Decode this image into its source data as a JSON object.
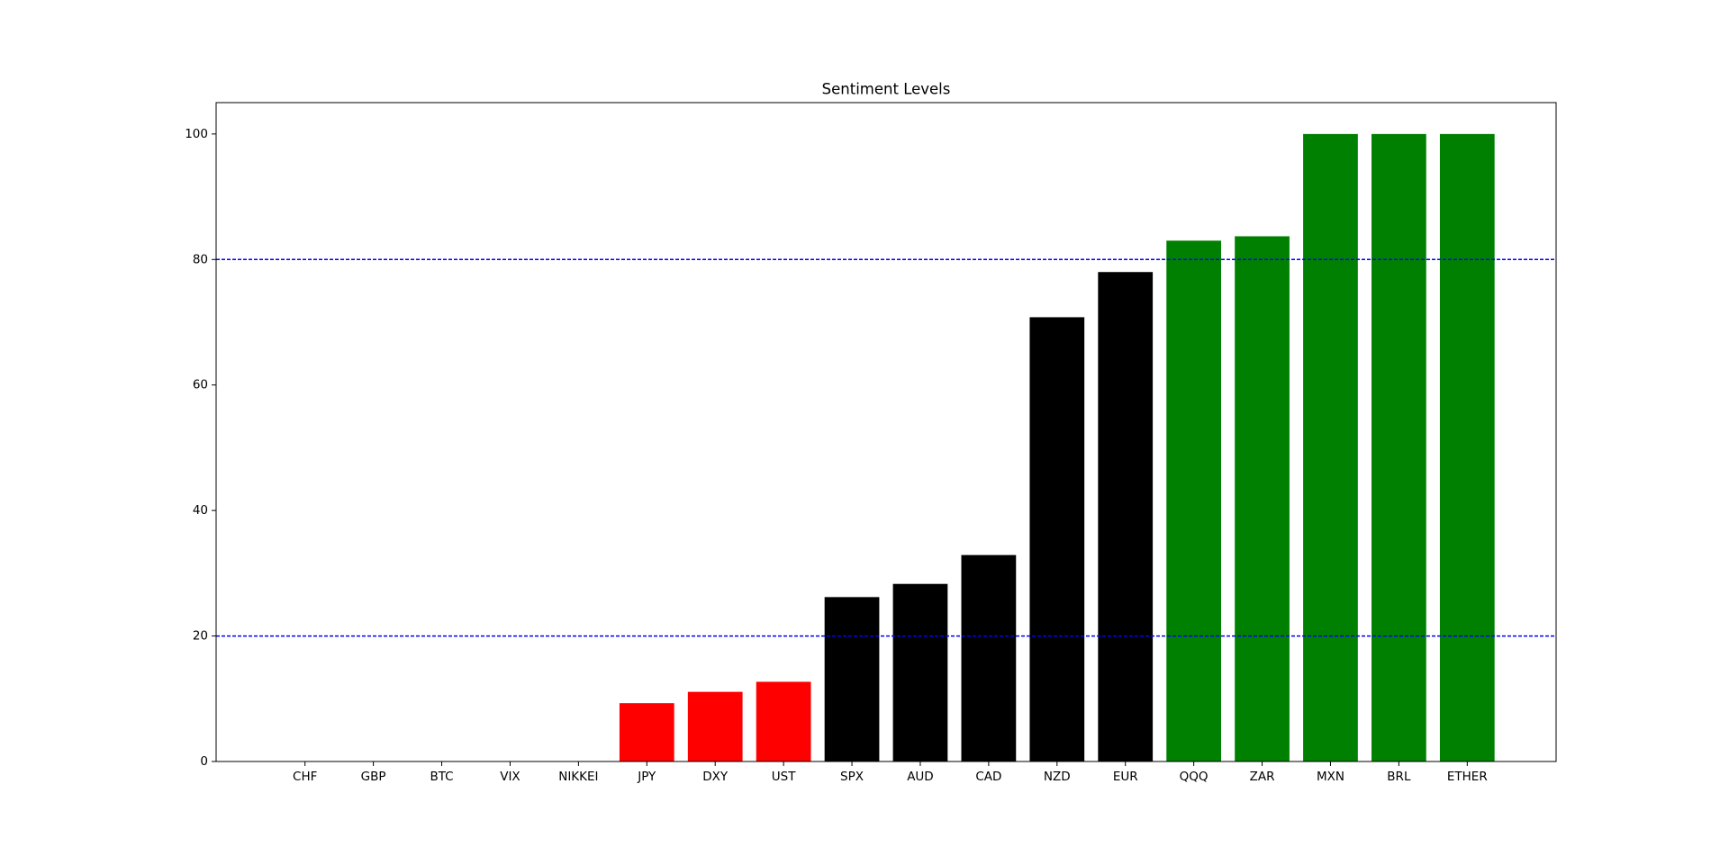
{
  "chart_data": {
    "type": "bar",
    "title": "Sentiment Levels",
    "categories": [
      "CHF",
      "GBP",
      "BTC",
      "VIX",
      "NIKKEI",
      "JPY",
      "DXY",
      "UST",
      "SPX",
      "AUD",
      "CAD",
      "NZD",
      "EUR",
      "QQQ",
      "ZAR",
      "MXN",
      "BRL",
      "ETHER"
    ],
    "values": [
      0,
      0,
      0,
      0,
      0,
      9.3,
      11.1,
      12.7,
      26.2,
      28.3,
      32.9,
      70.8,
      78.0,
      83.0,
      83.7,
      100,
      100,
      100
    ],
    "colors": [
      "#ff0000",
      "#ff0000",
      "#ff0000",
      "#ff0000",
      "#ff0000",
      "#ff0000",
      "#ff0000",
      "#ff0000",
      "#000000",
      "#000000",
      "#000000",
      "#000000",
      "#000000",
      "#008000",
      "#008000",
      "#008000",
      "#008000",
      "#008000"
    ],
    "ylim": [
      0,
      105
    ],
    "yticks": [
      0,
      20,
      40,
      60,
      80,
      100
    ],
    "hlines": [
      20,
      80
    ],
    "hline_color": "#0000ff"
  }
}
